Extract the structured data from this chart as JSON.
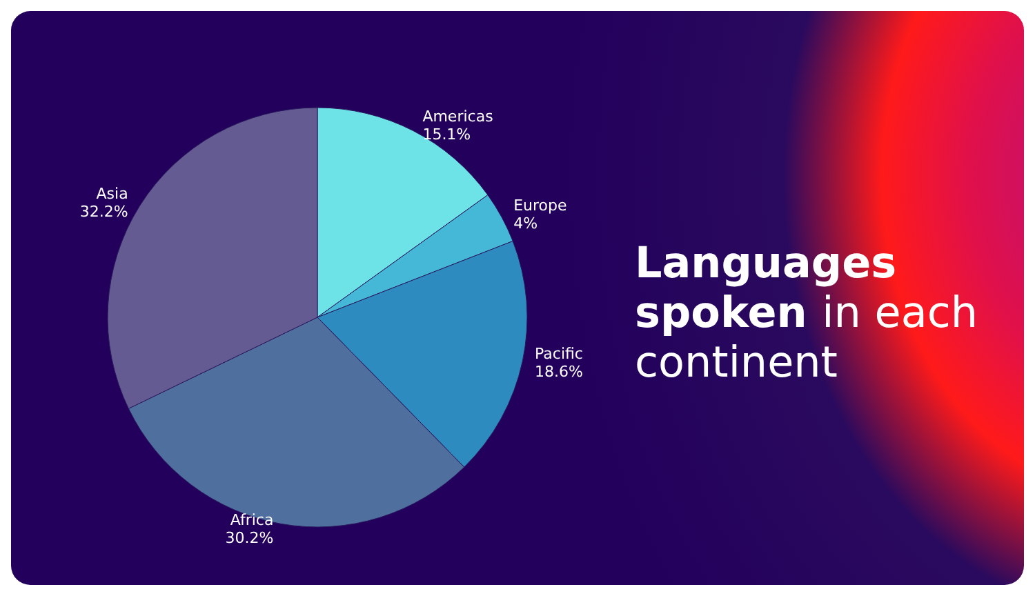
{
  "chart_data": {
    "type": "pie",
    "title": "Languages spoken in each continent",
    "categories": [
      "Americas",
      "Europe",
      "Pacific",
      "Africa",
      "Asia"
    ],
    "values": [
      15.1,
      4,
      18.6,
      30.2,
      32.2
    ],
    "value_labels": [
      "15.1%",
      "4%",
      "18.6%",
      "30.2%",
      "32.2%"
    ],
    "colors": [
      "#6de3e8",
      "#45b8d8",
      "#2e8bbf",
      "#4f6f9e",
      "#655b93"
    ],
    "legend": false
  }
}
